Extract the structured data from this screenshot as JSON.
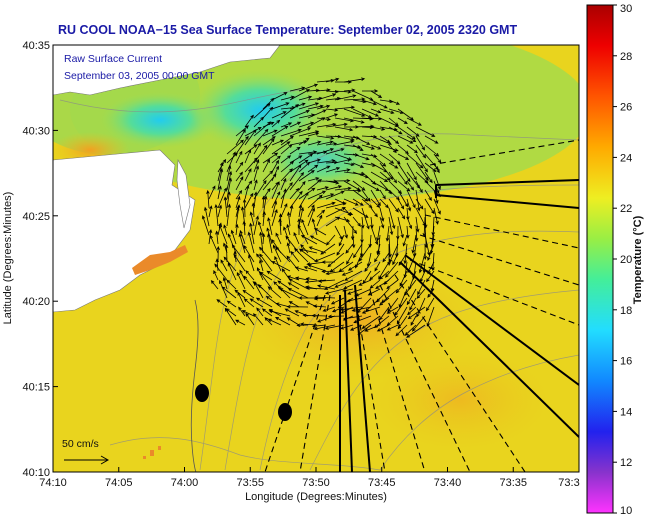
{
  "title": "RU COOL  NOAA−15  Sea Surface Temperature:  September 02, 2005 2320 GMT",
  "legend": {
    "line1": "Raw Surface Current",
    "line2": "September 03, 2005 00:00 GMT"
  },
  "axes": {
    "xlabel": "Longitude (Degrees:Minutes)",
    "ylabel": "Latitude (Degrees:Minutes)",
    "xticks": [
      "74:10",
      "74:05",
      "74:00",
      "73:55",
      "73:50",
      "73:45",
      "73:40",
      "73:35",
      "73:3"
    ],
    "yticks": [
      "40:35",
      "40:30",
      "40:25",
      "40:20",
      "40:15",
      "40:10"
    ]
  },
  "colorbar": {
    "title": "Temperature (°C)",
    "ticks": [
      "30",
      "28",
      "26",
      "24",
      "22",
      "20",
      "18",
      "16",
      "14",
      "12",
      "10"
    ],
    "range": [
      10,
      30
    ]
  },
  "scale_label": "50 cm/s",
  "colors": {
    "land": "#ffffff",
    "sea_base": "#e8d820",
    "title": "#1a1aa6",
    "arrow": "#000000"
  },
  "markers": [
    {
      "name": "buoy-marker-1"
    },
    {
      "name": "buoy-marker-2"
    }
  ]
}
